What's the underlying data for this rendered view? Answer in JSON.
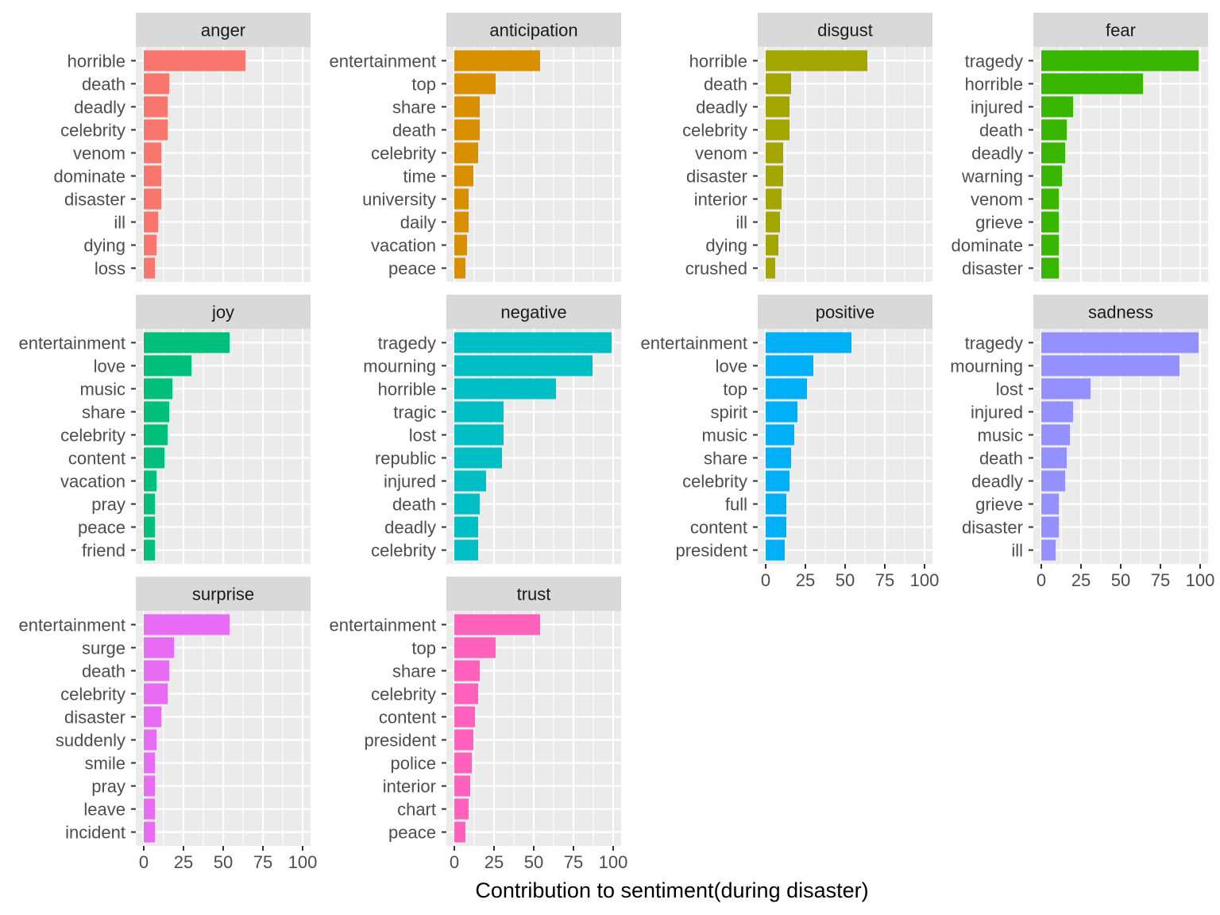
{
  "chart_data": {
    "type": "bar",
    "orientation": "horizontal",
    "layout": "facet_wrap",
    "xlabel": "Contribution to sentiment(during disaster)",
    "ylabel": "",
    "xlim": [
      0,
      100
    ],
    "x_ticks": [
      0,
      25,
      50,
      75,
      100
    ],
    "grid": true,
    "legend": "none",
    "panels": [
      {
        "name": "anger",
        "color": "#F8766D",
        "categories": [
          "horrible",
          "death",
          "deadly",
          "celebrity",
          "venom",
          "dominate",
          "disaster",
          "ill",
          "dying",
          "loss"
        ],
        "values": [
          64,
          16,
          15,
          15,
          11,
          11,
          11,
          9,
          8,
          7
        ]
      },
      {
        "name": "anticipation",
        "color": "#D89000",
        "categories": [
          "entertainment",
          "top",
          "share",
          "death",
          "celebrity",
          "time",
          "university",
          "daily",
          "vacation",
          "peace"
        ],
        "values": [
          54,
          26,
          16,
          16,
          15,
          12,
          9,
          9,
          8,
          7
        ]
      },
      {
        "name": "disgust",
        "color": "#A3A500",
        "categories": [
          "horrible",
          "death",
          "deadly",
          "celebrity",
          "venom",
          "disaster",
          "interior",
          "ill",
          "dying",
          "crushed"
        ],
        "values": [
          64,
          16,
          15,
          15,
          11,
          11,
          10,
          9,
          8,
          6
        ]
      },
      {
        "name": "fear",
        "color": "#39B600",
        "categories": [
          "tragedy",
          "horrible",
          "injured",
          "death",
          "deadly",
          "warning",
          "venom",
          "grieve",
          "dominate",
          "disaster"
        ],
        "values": [
          99,
          64,
          20,
          16,
          15,
          13,
          11,
          11,
          11,
          11
        ]
      },
      {
        "name": "joy",
        "color": "#00BF7D",
        "categories": [
          "entertainment",
          "love",
          "music",
          "share",
          "celebrity",
          "content",
          "vacation",
          "pray",
          "peace",
          "friend"
        ],
        "values": [
          54,
          30,
          18,
          16,
          15,
          13,
          8,
          7,
          7,
          7
        ]
      },
      {
        "name": "negative",
        "color": "#00BFC4",
        "categories": [
          "tragedy",
          "mourning",
          "horrible",
          "tragic",
          "lost",
          "republic",
          "injured",
          "death",
          "deadly",
          "celebrity"
        ],
        "values": [
          99,
          87,
          64,
          31,
          31,
          30,
          20,
          16,
          15,
          15
        ]
      },
      {
        "name": "positive",
        "color": "#00B0F6",
        "categories": [
          "entertainment",
          "love",
          "top",
          "spirit",
          "music",
          "share",
          "celebrity",
          "full",
          "content",
          "president"
        ],
        "values": [
          54,
          30,
          26,
          20,
          18,
          16,
          15,
          13,
          13,
          12
        ]
      },
      {
        "name": "sadness",
        "color": "#9590FF",
        "categories": [
          "tragedy",
          "mourning",
          "lost",
          "injured",
          "music",
          "death",
          "deadly",
          "grieve",
          "disaster",
          "ill"
        ],
        "values": [
          99,
          87,
          31,
          20,
          18,
          16,
          15,
          11,
          11,
          9
        ]
      },
      {
        "name": "surprise",
        "color": "#E76BF3",
        "categories": [
          "entertainment",
          "surge",
          "death",
          "celebrity",
          "disaster",
          "suddenly",
          "smile",
          "pray",
          "leave",
          "incident"
        ],
        "values": [
          54,
          19,
          16,
          15,
          11,
          8,
          7,
          7,
          7,
          7
        ]
      },
      {
        "name": "trust",
        "color": "#FF62BC",
        "categories": [
          "entertainment",
          "top",
          "share",
          "celebrity",
          "content",
          "president",
          "police",
          "interior",
          "chart",
          "peace"
        ],
        "values": [
          54,
          26,
          16,
          15,
          13,
          12,
          11,
          10,
          9,
          7
        ]
      }
    ]
  }
}
